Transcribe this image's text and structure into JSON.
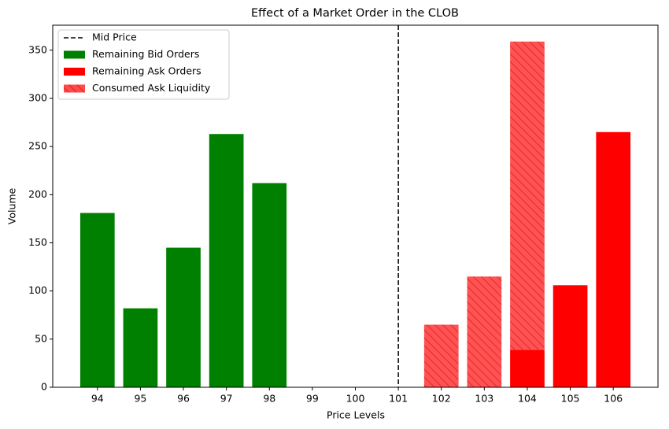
{
  "chart_data": {
    "type": "bar",
    "title": "Effect of a Market Order in the CLOB",
    "xlabel": "Price Levels",
    "ylabel": "Volume",
    "x": [
      94,
      95,
      96,
      97,
      98,
      99,
      100,
      101,
      102,
      103,
      104,
      105,
      106
    ],
    "series": [
      {
        "name": "Remaining Bid Orders",
        "color": "#008000",
        "values": [
          181,
          82,
          145,
          263,
          212,
          null,
          null,
          null,
          null,
          null,
          null,
          null,
          null
        ]
      },
      {
        "name": "Remaining Ask Orders",
        "color": "#ff0000",
        "values": [
          null,
          null,
          null,
          null,
          null,
          null,
          null,
          null,
          null,
          null,
          39,
          106,
          265
        ]
      },
      {
        "name": "Consumed Ask Liquidity",
        "color": "#ff4040",
        "hatch": true,
        "stacked": true,
        "values": [
          null,
          null,
          null,
          null,
          null,
          null,
          null,
          null,
          65,
          115,
          320,
          null,
          null
        ]
      }
    ],
    "mid_price": {
      "name": "Mid Price",
      "value": 101,
      "color": "#000000"
    },
    "xlim": [
      92.96,
      107.04
    ],
    "xticks": [
      94,
      95,
      96,
      97,
      98,
      99,
      100,
      101,
      102,
      103,
      104,
      105,
      106
    ],
    "ylim": [
      0,
      376
    ],
    "yticks": [
      0,
      50,
      100,
      150,
      200,
      250,
      300,
      350
    ],
    "legend": "upper-left",
    "grid": false
  }
}
